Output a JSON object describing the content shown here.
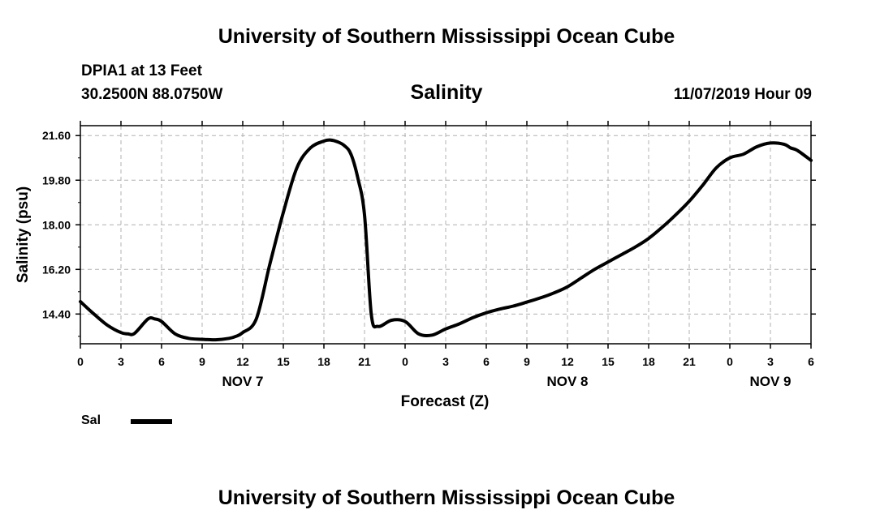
{
  "header": {
    "title": "University of Southern Mississippi Ocean Cube",
    "station": "DPIA1 at 13 Feet",
    "coords": "30.2500N 88.0750W",
    "chart_title": "Salinity",
    "timestamp": "11/07/2019 Hour 09"
  },
  "footer": {
    "title": "University of Southern Mississippi Ocean Cube"
  },
  "legend": {
    "label": "Sal",
    "color": "#000000"
  },
  "chart_data": {
    "type": "line",
    "title": "Salinity",
    "xlabel": "Forecast (Z)",
    "ylabel": "Salinity (psu)",
    "xlim": [
      0,
      54
    ],
    "ylim": [
      13.2,
      22.0
    ],
    "yticks": [
      14.4,
      16.2,
      18.0,
      19.8,
      21.6
    ],
    "ytick_labels": [
      "14.40",
      "16.20",
      "18.00",
      "19.80",
      "21.60"
    ],
    "xticks": [
      0,
      3,
      6,
      9,
      12,
      15,
      18,
      21,
      24,
      27,
      30,
      33,
      36,
      39,
      42,
      45,
      48,
      51,
      54
    ],
    "xtick_labels": [
      "0",
      "3",
      "6",
      "9",
      "12",
      "15",
      "18",
      "21",
      "0",
      "3",
      "6",
      "9",
      "12",
      "15",
      "18",
      "21",
      "0",
      "3",
      "6"
    ],
    "day_labels": [
      {
        "x": 12,
        "label": "NOV 7"
      },
      {
        "x": 36,
        "label": "NOV 8"
      },
      {
        "x": 51,
        "label": "NOV 9"
      }
    ],
    "grid": true,
    "series": [
      {
        "name": "Sal",
        "x": [
          0,
          1,
          2,
          3,
          3.5,
          4,
          5,
          5.5,
          6,
          7,
          8,
          9,
          10,
          11,
          11.5,
          12,
          13,
          14,
          15,
          16,
          17,
          18,
          18.5,
          19,
          19.5,
          20,
          20.5,
          21,
          21.5,
          22,
          23,
          24,
          25,
          26,
          27,
          28,
          29,
          30,
          31,
          32,
          33,
          34,
          35,
          36,
          37,
          38,
          39,
          40,
          41,
          42,
          43,
          44,
          45,
          46,
          47,
          48,
          49,
          50,
          51,
          52,
          52.5,
          53,
          54
        ],
        "values": [
          14.9,
          14.4,
          13.95,
          13.65,
          13.6,
          13.62,
          14.2,
          14.2,
          14.1,
          13.6,
          13.42,
          13.38,
          13.36,
          13.42,
          13.5,
          13.65,
          14.2,
          16.4,
          18.5,
          20.3,
          21.1,
          21.38,
          21.42,
          21.35,
          21.2,
          20.85,
          19.9,
          18.4,
          14.4,
          13.9,
          14.15,
          14.1,
          13.6,
          13.55,
          13.8,
          14.0,
          14.25,
          14.45,
          14.6,
          14.72,
          14.88,
          15.05,
          15.25,
          15.5,
          15.85,
          16.2,
          16.5,
          16.8,
          17.1,
          17.45,
          17.9,
          18.4,
          18.95,
          19.6,
          20.3,
          20.7,
          20.85,
          21.15,
          21.3,
          21.25,
          21.1,
          21.0,
          20.6
        ]
      }
    ]
  }
}
